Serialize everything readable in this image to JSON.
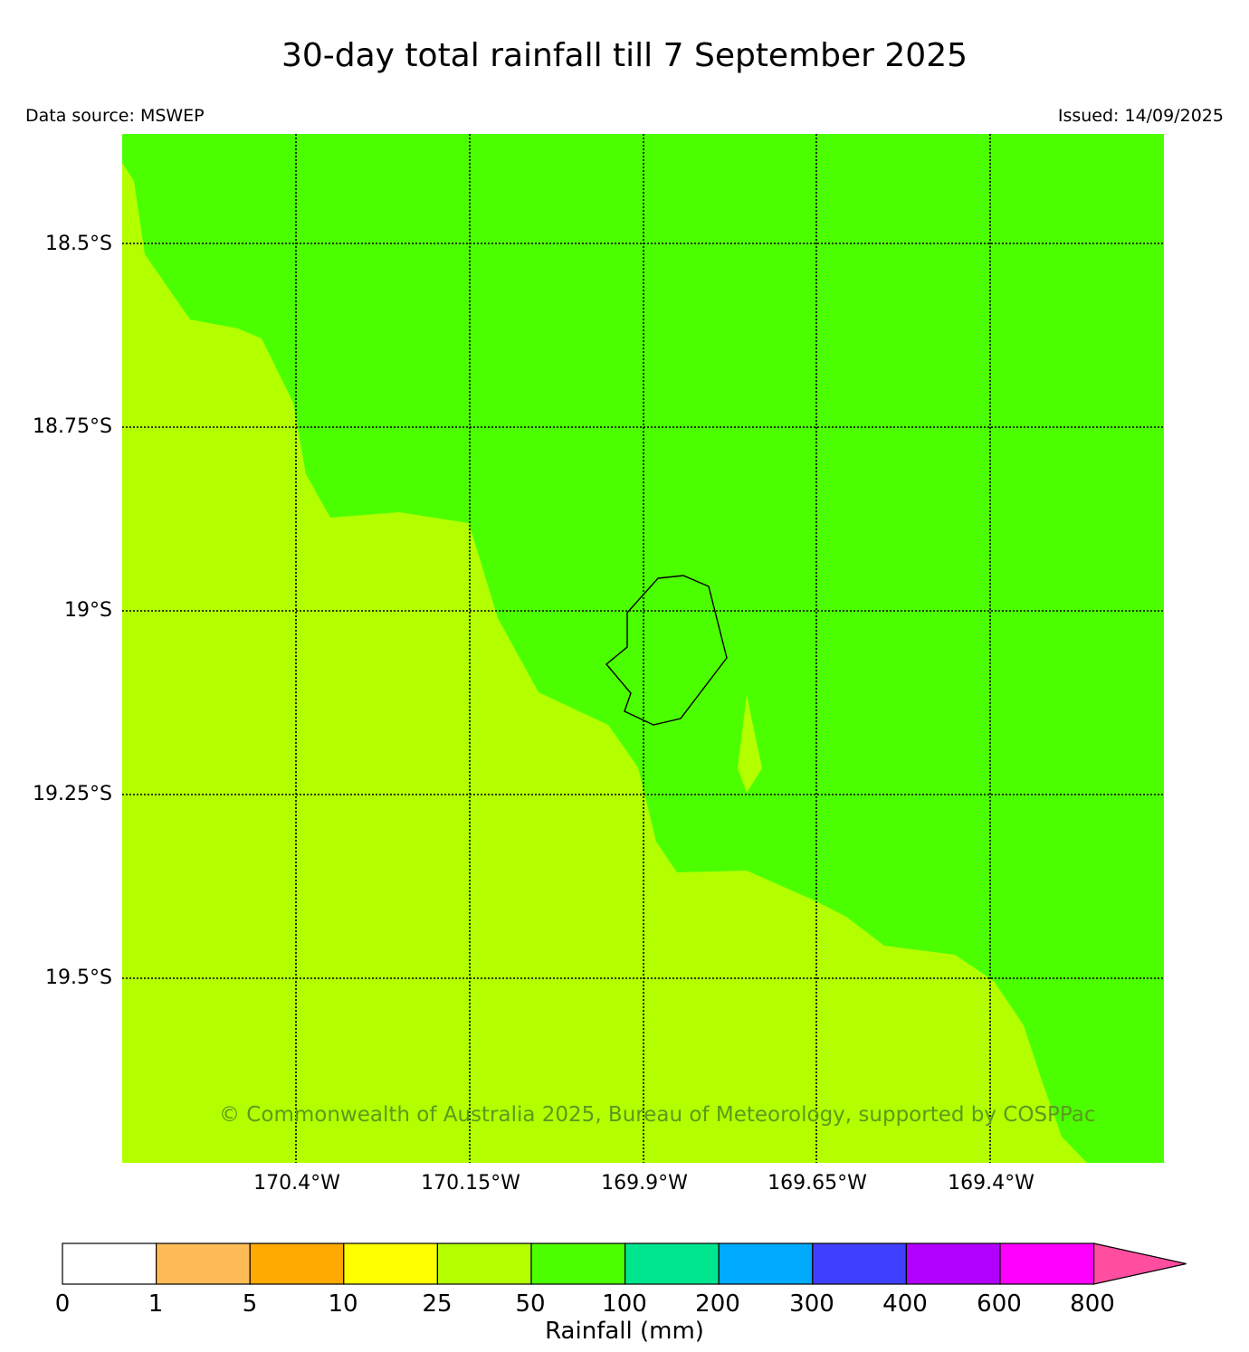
{
  "title": "30-day total rainfall till 7 September 2025",
  "data_source": "Data source: MSWEP",
  "issued": "Issued: 14/09/2025",
  "latitude_labels": [
    "18.5°S",
    "18.75°S",
    "19°S",
    "19.25°S",
    "19.5°S"
  ],
  "longitude_labels": [
    "170.4°W",
    "170.15°W",
    "169.9°W",
    "169.65°W",
    "169.4°W"
  ],
  "copyright": "© Commonwealth of Australia 2025, Bureau of Meteorology, supported by COSPPac",
  "map": {
    "region_colors": {
      "rain_50_100": "#4cff00",
      "rain_25_50": "#b3ff00"
    },
    "island_outline": "black coastline outline"
  },
  "colorbar": {
    "label": "Rainfall (mm)",
    "ticks": [
      "0",
      "1",
      "5",
      "10",
      "25",
      "50",
      "100",
      "200",
      "300",
      "400",
      "600",
      "800"
    ],
    "colors": [
      "#ffffff",
      "#ffbb55",
      "#ffaa00",
      "#ffff00",
      "#b3ff00",
      "#4cff00",
      "#00e68f",
      "#00aaff",
      "#3f3fff",
      "#b200ff",
      "#ff00ff"
    ],
    "extend_color": "#ff4ea0"
  }
}
